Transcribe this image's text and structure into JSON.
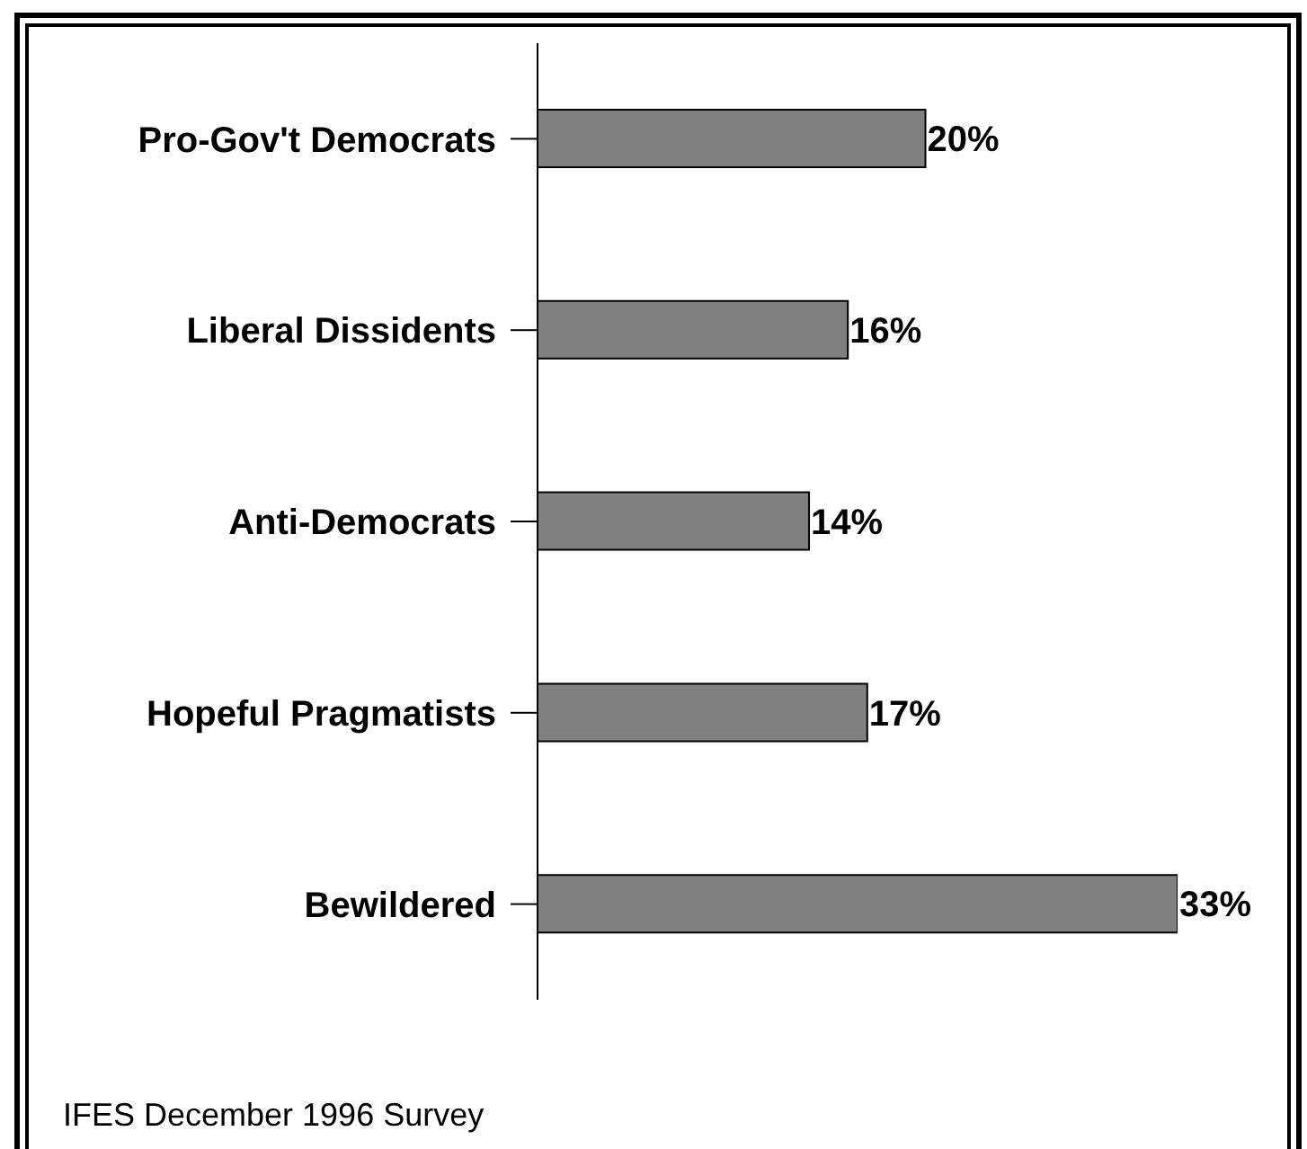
{
  "chart_data": {
    "type": "bar",
    "orientation": "horizontal",
    "categories": [
      "Pro-Gov't Democrats",
      "Liberal Dissidents",
      "Anti-Democrats",
      "Hopeful Pragmatists",
      "Bewildered"
    ],
    "values": [
      20,
      16,
      14,
      17,
      33
    ],
    "value_labels": [
      "20%",
      "16%",
      "14%",
      "17%",
      "33%"
    ],
    "color": "#808080",
    "tick_labels": "y",
    "annotations": [
      "IFES December 1996 Survey"
    ]
  }
}
